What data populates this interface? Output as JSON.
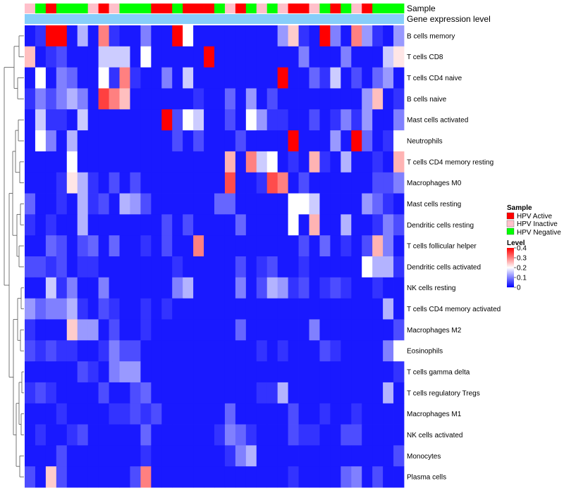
{
  "chart_data": {
    "type": "heatmap",
    "annotations": {
      "sample_label": "Sample",
      "expression_label": "Gene expression level"
    },
    "rows": [
      "B cells memory",
      "T cells CD8",
      "T cells CD4 naive",
      "B cells naive",
      "Mast cells activated",
      "Neutrophils",
      "T cells CD4 memory resting",
      "Macrophages M0",
      "Mast cells resting",
      "Dendritic cells resting",
      "T cells follicular helper",
      "Dendritic cells activated",
      "NK cells resting",
      "T cells CD4 memory activated",
      "Macrophages M2",
      "Eosinophils",
      "T cells gamma delta",
      "T cells regulatory  Tregs",
      "Macrophages M1",
      "NK cells activated",
      "Monocytes",
      "Plasma cells"
    ],
    "sample_groups": [
      "pink",
      "green",
      "red",
      "green",
      "green",
      "green",
      "pink",
      "red",
      "pink",
      "green",
      "green",
      "green",
      "red",
      "red",
      "green",
      "red",
      "red",
      "red",
      "green",
      "pink",
      "red",
      "green",
      "pink",
      "green",
      "pink",
      "red",
      "red",
      "pink",
      "green",
      "red",
      "green",
      "pink",
      "red",
      "green",
      "green",
      "green"
    ],
    "values": [
      [
        0.02,
        0.04,
        0.4,
        0.4,
        0.02,
        0.14,
        0.02,
        0.3,
        0.04,
        0.02,
        0.02,
        0.1,
        0.02,
        0.02,
        0.4,
        0.2,
        0.02,
        0.02,
        0.02,
        0.02,
        0.02,
        0.02,
        0.02,
        0.02,
        0.12,
        0.24,
        0.04,
        0.02,
        0.4,
        0.1,
        0.02,
        0.3,
        0.12,
        0.04,
        0.02,
        0.12
      ],
      [
        0.25,
        0.02,
        0.04,
        0.06,
        0.02,
        0.02,
        0.02,
        0.16,
        0.16,
        0.16,
        0.02,
        0.2,
        0.02,
        0.02,
        0.02,
        0.02,
        0.02,
        0.4,
        0.02,
        0.02,
        0.02,
        0.02,
        0.02,
        0.02,
        0.02,
        0.02,
        0.1,
        0.02,
        0.02,
        0.02,
        0.1,
        0.02,
        0.02,
        0.02,
        0.16,
        0.22
      ],
      [
        0.02,
        0.2,
        0.02,
        0.1,
        0.08,
        0.02,
        0.02,
        0.2,
        0.04,
        0.3,
        0.04,
        0.02,
        0.02,
        0.1,
        0.02,
        0.16,
        0.02,
        0.02,
        0.02,
        0.02,
        0.02,
        0.02,
        0.02,
        0.02,
        0.4,
        0.02,
        0.02,
        0.08,
        0.04,
        0.16,
        0.02,
        0.06,
        0.02,
        0.08,
        0.12,
        0.02
      ],
      [
        0.04,
        0.1,
        0.06,
        0.1,
        0.14,
        0.1,
        0.02,
        0.35,
        0.3,
        0.25,
        0.02,
        0.02,
        0.02,
        0.02,
        0.02,
        0.02,
        0.04,
        0.02,
        0.02,
        0.08,
        0.02,
        0.12,
        0.02,
        0.06,
        0.02,
        0.02,
        0.02,
        0.02,
        0.02,
        0.02,
        0.02,
        0.02,
        0.12,
        0.25,
        0.02,
        0.04
      ],
      [
        0.02,
        0.16,
        0.04,
        0.04,
        0.02,
        0.16,
        0.02,
        0.02,
        0.02,
        0.02,
        0.02,
        0.02,
        0.02,
        0.4,
        0.06,
        0.2,
        0.16,
        0.02,
        0.02,
        0.06,
        0.02,
        0.2,
        0.12,
        0.04,
        0.04,
        0.02,
        0.02,
        0.06,
        0.02,
        0.04,
        0.1,
        0.04,
        0.12,
        0.02,
        0.02,
        0.1
      ],
      [
        0.02,
        0.2,
        0.1,
        0.02,
        0.14,
        0.02,
        0.02,
        0.02,
        0.02,
        0.02,
        0.02,
        0.02,
        0.02,
        0.02,
        0.06,
        0.02,
        0.06,
        0.02,
        0.02,
        0.02,
        0.06,
        0.02,
        0.02,
        0.02,
        0.02,
        0.4,
        0.02,
        0.02,
        0.02,
        0.12,
        0.02,
        0.4,
        0.08,
        0.02,
        0.04,
        0.2
      ],
      [
        0.02,
        0.02,
        0.02,
        0.02,
        0.2,
        0.02,
        0.02,
        0.02,
        0.02,
        0.02,
        0.02,
        0.02,
        0.02,
        0.02,
        0.02,
        0.02,
        0.02,
        0.02,
        0.02,
        0.26,
        0.02,
        0.3,
        0.16,
        0.2,
        0.02,
        0.04,
        0.02,
        0.26,
        0.04,
        0.02,
        0.14,
        0.02,
        0.02,
        0.04,
        0.02,
        0.26
      ],
      [
        0.02,
        0.02,
        0.02,
        0.04,
        0.22,
        0.14,
        0.04,
        0.02,
        0.06,
        0.02,
        0.06,
        0.02,
        0.02,
        0.02,
        0.02,
        0.02,
        0.02,
        0.02,
        0.02,
        0.34,
        0.02,
        0.02,
        0.04,
        0.34,
        0.3,
        0.02,
        0.06,
        0.02,
        0.02,
        0.02,
        0.02,
        0.02,
        0.02,
        0.06,
        0.06,
        0.1
      ],
      [
        0.08,
        0.02,
        0.02,
        0.04,
        0.02,
        0.14,
        0.04,
        0.06,
        0.02,
        0.14,
        0.12,
        0.06,
        0.02,
        0.02,
        0.02,
        0.02,
        0.02,
        0.02,
        0.08,
        0.08,
        0.02,
        0.02,
        0.02,
        0.02,
        0.02,
        0.2,
        0.2,
        0.16,
        0.02,
        0.02,
        0.02,
        0.02,
        0.12,
        0.08,
        0.04,
        0.02
      ],
      [
        0.04,
        0.02,
        0.04,
        0.02,
        0.02,
        0.14,
        0.02,
        0.02,
        0.02,
        0.02,
        0.02,
        0.02,
        0.02,
        0.06,
        0.02,
        0.06,
        0.02,
        0.02,
        0.02,
        0.02,
        0.08,
        0.02,
        0.02,
        0.02,
        0.02,
        0.2,
        0.02,
        0.26,
        0.02,
        0.02,
        0.14,
        0.02,
        0.02,
        0.04,
        0.1,
        0.06
      ],
      [
        0.02,
        0.02,
        0.08,
        0.06,
        0.02,
        0.06,
        0.08,
        0.02,
        0.08,
        0.02,
        0.02,
        0.04,
        0.02,
        0.06,
        0.02,
        0.02,
        0.3,
        0.02,
        0.02,
        0.02,
        0.02,
        0.02,
        0.02,
        0.02,
        0.02,
        0.02,
        0.06,
        0.02,
        0.08,
        0.02,
        0.04,
        0.02,
        0.06,
        0.26,
        0.1,
        0.02
      ],
      [
        0.06,
        0.06,
        0.04,
        0.06,
        0.02,
        0.04,
        0.04,
        0.02,
        0.02,
        0.02,
        0.02,
        0.02,
        0.02,
        0.02,
        0.04,
        0.02,
        0.02,
        0.02,
        0.02,
        0.02,
        0.06,
        0.02,
        0.04,
        0.06,
        0.02,
        0.02,
        0.04,
        0.02,
        0.02,
        0.02,
        0.02,
        0.02,
        0.2,
        0.14,
        0.14,
        0.04
      ],
      [
        0.02,
        0.02,
        0.16,
        0.04,
        0.1,
        0.02,
        0.02,
        0.1,
        0.02,
        0.02,
        0.02,
        0.02,
        0.02,
        0.02,
        0.1,
        0.14,
        0.02,
        0.02,
        0.02,
        0.02,
        0.1,
        0.02,
        0.06,
        0.14,
        0.12,
        0.04,
        0.06,
        0.02,
        0.04,
        0.06,
        0.04,
        0.02,
        0.02,
        0.04,
        0.02,
        0.02
      ],
      [
        0.12,
        0.08,
        0.1,
        0.1,
        0.14,
        0.04,
        0.02,
        0.06,
        0.04,
        0.02,
        0.02,
        0.04,
        0.02,
        0.04,
        0.02,
        0.02,
        0.02,
        0.02,
        0.02,
        0.02,
        0.02,
        0.02,
        0.02,
        0.02,
        0.02,
        0.02,
        0.02,
        0.02,
        0.02,
        0.02,
        0.02,
        0.02,
        0.02,
        0.02,
        0.14,
        0.02
      ],
      [
        0.04,
        0.02,
        0.02,
        0.02,
        0.24,
        0.12,
        0.12,
        0.02,
        0.06,
        0.02,
        0.02,
        0.04,
        0.02,
        0.02,
        0.02,
        0.02,
        0.02,
        0.02,
        0.02,
        0.02,
        0.08,
        0.02,
        0.02,
        0.02,
        0.02,
        0.02,
        0.02,
        0.1,
        0.02,
        0.02,
        0.02,
        0.02,
        0.02,
        0.02,
        0.02,
        0.06
      ],
      [
        0.06,
        0.04,
        0.06,
        0.04,
        0.04,
        0.02,
        0.02,
        0.04,
        0.1,
        0.06,
        0.06,
        0.02,
        0.02,
        0.02,
        0.02,
        0.02,
        0.02,
        0.02,
        0.02,
        0.02,
        0.02,
        0.02,
        0.04,
        0.02,
        0.04,
        0.02,
        0.02,
        0.02,
        0.06,
        0.04,
        0.02,
        0.02,
        0.02,
        0.02,
        0.1,
        0.2
      ],
      [
        0.02,
        0.02,
        0.02,
        0.02,
        0.02,
        0.06,
        0.04,
        0.02,
        0.1,
        0.12,
        0.12,
        0.02,
        0.02,
        0.02,
        0.02,
        0.02,
        0.02,
        0.02,
        0.02,
        0.02,
        0.02,
        0.02,
        0.02,
        0.02,
        0.02,
        0.02,
        0.02,
        0.02,
        0.02,
        0.02,
        0.02,
        0.02,
        0.02,
        0.02,
        0.02,
        0.04
      ],
      [
        0.04,
        0.06,
        0.04,
        0.02,
        0.02,
        0.02,
        0.02,
        0.06,
        0.02,
        0.02,
        0.06,
        0.08,
        0.02,
        0.02,
        0.02,
        0.02,
        0.02,
        0.02,
        0.02,
        0.02,
        0.02,
        0.02,
        0.04,
        0.04,
        0.14,
        0.02,
        0.02,
        0.02,
        0.02,
        0.02,
        0.02,
        0.02,
        0.02,
        0.02,
        0.14,
        0.02
      ],
      [
        0.02,
        0.02,
        0.02,
        0.04,
        0.02,
        0.02,
        0.02,
        0.02,
        0.04,
        0.04,
        0.06,
        0.04,
        0.06,
        0.02,
        0.02,
        0.02,
        0.02,
        0.02,
        0.02,
        0.08,
        0.02,
        0.02,
        0.02,
        0.02,
        0.02,
        0.06,
        0.02,
        0.02,
        0.04,
        0.02,
        0.02,
        0.04,
        0.02,
        0.02,
        0.02,
        0.02
      ],
      [
        0.02,
        0.04,
        0.02,
        0.02,
        0.04,
        0.06,
        0.02,
        0.02,
        0.02,
        0.02,
        0.02,
        0.08,
        0.02,
        0.02,
        0.02,
        0.02,
        0.02,
        0.02,
        0.04,
        0.1,
        0.08,
        0.04,
        0.02,
        0.02,
        0.02,
        0.06,
        0.04,
        0.04,
        0.02,
        0.02,
        0.06,
        0.06,
        0.02,
        0.02,
        0.02,
        0.02
      ],
      [
        0.02,
        0.02,
        0.02,
        0.06,
        0.02,
        0.02,
        0.02,
        0.02,
        0.02,
        0.02,
        0.02,
        0.04,
        0.02,
        0.02,
        0.02,
        0.02,
        0.02,
        0.02,
        0.02,
        0.04,
        0.1,
        0.14,
        0.02,
        0.02,
        0.02,
        0.02,
        0.02,
        0.02,
        0.02,
        0.02,
        0.02,
        0.02,
        0.02,
        0.02,
        0.02,
        0.06
      ],
      [
        0.06,
        0.02,
        0.24,
        0.06,
        0.02,
        0.02,
        0.02,
        0.02,
        0.02,
        0.02,
        0.06,
        0.3,
        0.02,
        0.02,
        0.02,
        0.02,
        0.02,
        0.02,
        0.02,
        0.02,
        0.02,
        0.02,
        0.02,
        0.02,
        0.02,
        0.04,
        0.02,
        0.02,
        0.02,
        0.02,
        0.08,
        0.1,
        0.02,
        0.06,
        0.02,
        0.02
      ]
    ],
    "color_scale": {
      "title": "Level",
      "min": 0,
      "max": 0.4,
      "ticks": [
        0,
        0.1,
        0.2,
        0.3,
        0.4
      ],
      "tick_labels": [
        "0",
        "0.1",
        "0.2",
        "0.3",
        "0.4"
      ],
      "low_color": "#0000ff",
      "mid_color": "#ffffff",
      "high_color": "#ff0000",
      "mid_value": 0.2
    },
    "legend": {
      "title": "Sample",
      "items": [
        {
          "key": "red",
          "label": "HPV Active",
          "color": "#ff0000"
        },
        {
          "key": "pink",
          "label": "HPV Inactive",
          "color": "#ffc0cb"
        },
        {
          "key": "green",
          "label": "HPV Negative",
          "color": "#00ff00"
        }
      ]
    },
    "expression_bar_color": "#87cefa"
  }
}
